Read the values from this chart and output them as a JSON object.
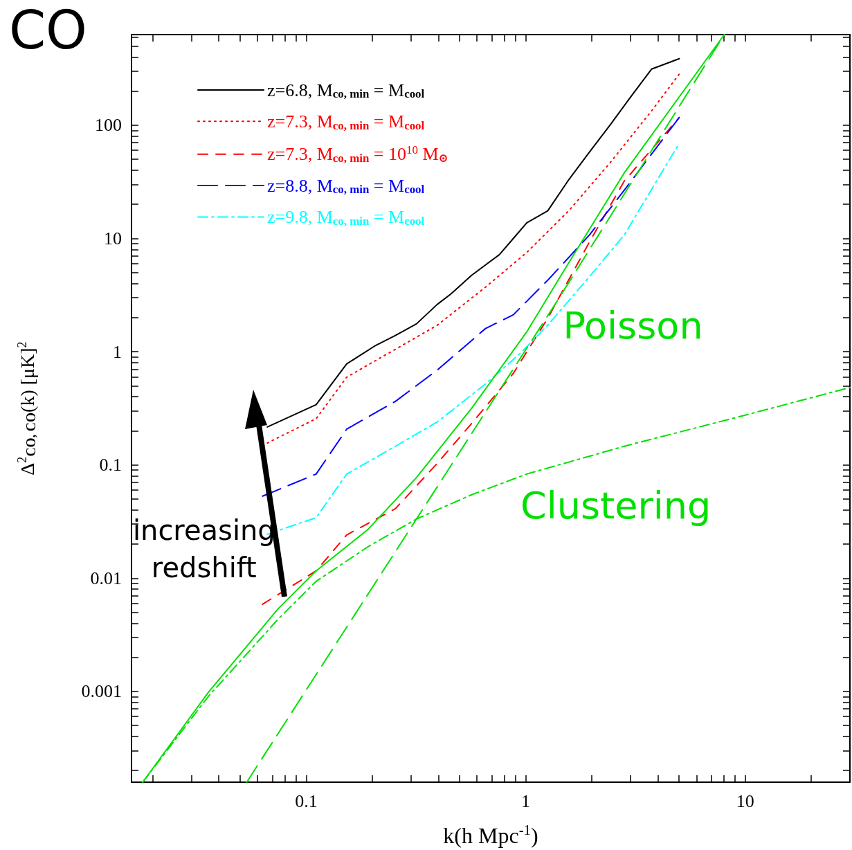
{
  "chart_data": {
    "type": "line",
    "title": "CO",
    "xlabel": "k(h Mpc$^{-1}$)",
    "ylabel": "Δ$^{2}$$_{CO, CO}$(k) [μK]$^{2}$",
    "log": "xy",
    "grid": false,
    "legend": "top left",
    "marker": "none",
    "xlim": [
      0.016,
      30
    ],
    "ylim": [
      0.000158,
      630
    ],
    "xticks": [
      {
        "value": 0.02,
        "label": null
      },
      {
        "value": 0.03,
        "label": null
      },
      {
        "value": 0.04,
        "label": null
      },
      {
        "value": 0.05,
        "label": null
      },
      {
        "value": 0.06,
        "label": null
      },
      {
        "value": 0.07,
        "label": null
      },
      {
        "value": 0.08,
        "label": null
      },
      {
        "value": 0.09,
        "label": null
      },
      0.1,
      {
        "value": 0.2,
        "label": null
      },
      {
        "value": 0.3,
        "label": null
      },
      {
        "value": 0.4,
        "label": null
      },
      {
        "value": 0.5,
        "label": null
      },
      {
        "value": 0.6,
        "label": null
      },
      {
        "value": 0.7,
        "label": null
      },
      {
        "value": 0.8,
        "label": null
      },
      {
        "value": 0.9,
        "label": null
      },
      1,
      {
        "value": 2,
        "label": null
      },
      {
        "value": 3,
        "label": null
      },
      {
        "value": 4,
        "label": null
      },
      {
        "value": 5,
        "label": null
      },
      {
        "value": 6,
        "label": null
      },
      {
        "value": 7,
        "label": null
      },
      {
        "value": 8,
        "label": null
      },
      {
        "value": 9,
        "label": null
      },
      10,
      {
        "value": 20,
        "label": null
      }
    ],
    "yticks": [
      {
        "value": 0.0002,
        "label": null
      },
      {
        "value": 0.0003,
        "label": null
      },
      {
        "value": 0.0004,
        "label": null
      },
      {
        "value": 0.0005,
        "label": null
      },
      {
        "value": 0.0006,
        "label": null
      },
      {
        "value": 0.0007,
        "label": null
      },
      {
        "value": 0.0008,
        "label": null
      },
      {
        "value": 0.0009,
        "label": null
      },
      0.001,
      {
        "value": 0.002,
        "label": null
      },
      {
        "value": 0.003,
        "label": null
      },
      {
        "value": 0.004,
        "label": null
      },
      {
        "value": 0.005,
        "label": null
      },
      {
        "value": 0.006,
        "label": null
      },
      {
        "value": 0.007,
        "label": null
      },
      {
        "value": 0.008,
        "label": null
      },
      {
        "value": 0.009,
        "label": null
      },
      0.01,
      {
        "value": 0.02,
        "label": null
      },
      {
        "value": 0.03,
        "label": null
      },
      {
        "value": 0.04,
        "label": null
      },
      {
        "value": 0.05,
        "label": null
      },
      {
        "value": 0.06,
        "label": null
      },
      {
        "value": 0.07,
        "label": null
      },
      {
        "value": 0.08,
        "label": null
      },
      {
        "value": 0.09,
        "label": null
      },
      0.1,
      {
        "value": 0.2,
        "label": null
      },
      {
        "value": 0.3,
        "label": null
      },
      {
        "value": 0.4,
        "label": null
      },
      {
        "value": 0.5,
        "label": null
      },
      {
        "value": 0.6,
        "label": null
      },
      {
        "value": 0.7,
        "label": null
      },
      {
        "value": 0.8,
        "label": null
      },
      {
        "value": 0.9,
        "label": null
      },
      1,
      {
        "value": 2,
        "label": null
      },
      {
        "value": 3,
        "label": null
      },
      {
        "value": 4,
        "label": null
      },
      {
        "value": 5,
        "label": null
      },
      {
        "value": 6,
        "label": null
      },
      {
        "value": 7,
        "label": null
      },
      {
        "value": 8,
        "label": null
      },
      {
        "value": 9,
        "label": null
      },
      10,
      {
        "value": 20,
        "label": null
      },
      {
        "value": 30,
        "label": null
      },
      {
        "value": 40,
        "label": null
      },
      {
        "value": 50,
        "label": null
      },
      {
        "value": 60,
        "label": null
      },
      {
        "value": 70,
        "label": null
      },
      {
        "value": 80,
        "label": null
      },
      {
        "value": 90,
        "label": null
      },
      100,
      {
        "value": 200,
        "label": null
      },
      {
        "value": 300,
        "label": null
      },
      {
        "value": 400,
        "label": null
      },
      {
        "value": 500,
        "label": null
      },
      {
        "value": 600,
        "label": null
      }
    ],
    "series": [
      {
        "name": "z=6.8, M$_{co, min}$ = M$_{cool}$",
        "color": "#000000",
        "line_style": "solid",
        "x": [
          0.0665,
          0.111,
          0.153,
          0.205,
          0.255,
          0.318,
          0.395,
          0.456,
          0.567,
          0.656,
          0.759,
          0.877,
          1.01,
          1.26,
          1.57,
          1.95,
          2.43,
          3.01,
          3.75,
          5.01
        ],
        "values": [
          0.216,
          0.34,
          0.78,
          1.12,
          1.39,
          1.76,
          2.61,
          3.23,
          4.72,
          5.83,
          7.19,
          9.95,
          13.7,
          17.5,
          32.9,
          57.7,
          101,
          178,
          313,
          386
        ]
      },
      {
        "name": "z=7.3, M$_{co, min}$ = M$_{cool}$",
        "color": "#ff0000",
        "line_style": "dotted",
        "x": [
          0.0665,
          0.111,
          0.153,
          0.255,
          0.395,
          0.656,
          1.01,
          1.57,
          2.43,
          3.75,
          5.01
        ],
        "values": [
          0.156,
          0.256,
          0.596,
          1.05,
          1.71,
          3.71,
          7.5,
          17.5,
          46.8,
          134,
          283
        ]
      },
      {
        "name": "z=7.3, M$_{co, min}$ = 10$^{10}$ M$_{⊙}$",
        "color": "#ff0000",
        "line_style": "dashed",
        "x": [
          0.0633,
          0.111,
          0.153,
          0.255,
          0.395,
          0.567,
          0.877,
          1.26,
          1.95,
          2.81,
          5.01
        ],
        "values": [
          0.00589,
          0.0116,
          0.0241,
          0.0411,
          0.103,
          0.232,
          0.64,
          1.97,
          9.27,
          32,
          117
        ]
      },
      {
        "name": "z=8.8, M$_{co, min}$ = M$_{cool}$",
        "color": "#0000ff",
        "line_style": "longdash",
        "x": [
          0.0633,
          0.111,
          0.153,
          0.255,
          0.395,
          0.656,
          0.877,
          1.26,
          1.95,
          2.81,
          5.01
        ],
        "values": [
          0.053,
          0.083,
          0.207,
          0.364,
          0.686,
          1.6,
          2.11,
          4.27,
          10.7,
          26.6,
          117
        ]
      },
      {
        "name": "z=9.8, M$_{co, min}$ = M$_{cool}$",
        "color": "#00ffff",
        "line_style": "dashdot",
        "x": [
          0.0665,
          0.111,
          0.153,
          0.255,
          0.395,
          0.656,
          0.95,
          1.26,
          1.95,
          2.81,
          5.01
        ],
        "values": [
          0.0244,
          0.0342,
          0.083,
          0.146,
          0.239,
          0.518,
          0.975,
          1.71,
          4.58,
          10.7,
          69.3
        ]
      },
      {
        "color": "#00e000",
        "line_style": "solid",
        "x": [
          0.018,
          0.0359,
          0.0743,
          0.111,
          0.191,
          0.318,
          0.567,
          1.01,
          1.57,
          2.81,
          8.03
        ],
        "values": [
          0.000158,
          0.000986,
          0.00534,
          0.0116,
          0.0269,
          0.0774,
          0.316,
          1.49,
          6.08,
          37.8,
          630
        ]
      },
      {
        "color": "#00e000",
        "line_style": "longdash",
        "x": [
          0.0536,
          0.318,
          1.36,
          8.03
        ],
        "values": [
          0.000158,
          0.0333,
          2.61,
          630
        ]
      },
      {
        "color": "#00e000",
        "line_style": "dashdot",
        "x": [
          0.018,
          0.0359,
          0.0743,
          0.111,
          0.191,
          0.318,
          0.567,
          1.01,
          2.81,
          10,
          30
        ],
        "values": [
          0.000158,
          0.000908,
          0.00432,
          0.00937,
          0.0189,
          0.0333,
          0.0545,
          0.083,
          0.146,
          0.275,
          0.482
        ]
      }
    ],
    "annotations": [
      "Poisson",
      "Clustering",
      "increasing redshift"
    ]
  }
}
